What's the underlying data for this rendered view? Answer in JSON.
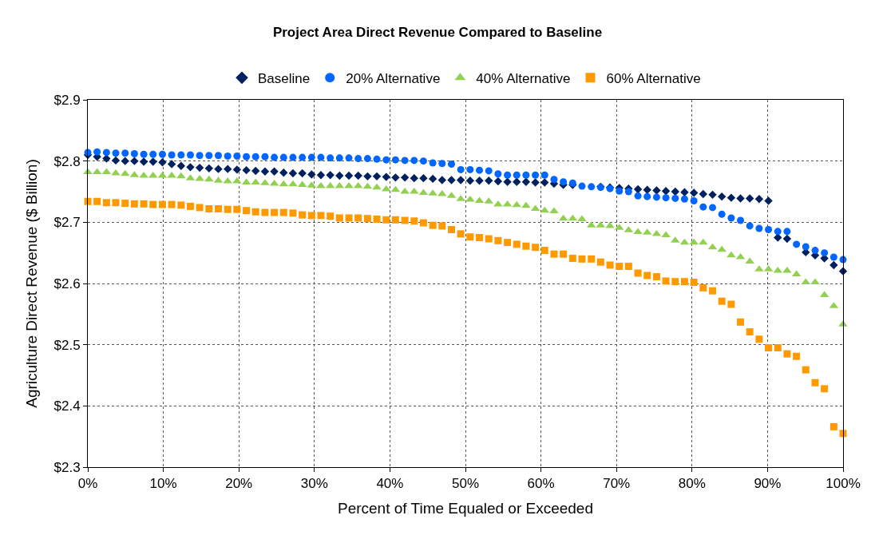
{
  "chart_data": {
    "type": "scatter",
    "title": "Project Area Direct Revenue Compared to Baseline",
    "xlabel": "Percent of Time Equaled or Exceeded",
    "ylabel": "Agriculture Direct Revenue ($ Billion)",
    "x": [
      0,
      1.23,
      2.47,
      3.7,
      4.94,
      6.17,
      7.41,
      8.64,
      9.88,
      11.11,
      12.35,
      13.58,
      14.81,
      16.05,
      17.28,
      18.52,
      19.75,
      20.99,
      22.22,
      23.46,
      24.69,
      25.93,
      27.16,
      28.4,
      29.63,
      30.86,
      32.1,
      33.33,
      34.57,
      35.8,
      37.04,
      38.27,
      39.51,
      40.74,
      41.98,
      43.21,
      44.44,
      45.68,
      46.91,
      48.15,
      49.38,
      50.62,
      51.85,
      53.09,
      54.32,
      55.56,
      56.79,
      58.02,
      59.26,
      60.49,
      61.73,
      62.96,
      64.2,
      65.43,
      66.67,
      67.9,
      69.14,
      70.37,
      71.6,
      72.84,
      74.07,
      75.31,
      76.54,
      77.78,
      79.01,
      80.25,
      81.48,
      82.72,
      83.95,
      85.19,
      86.42,
      87.65,
      88.89,
      90.12,
      91.36,
      92.59,
      93.83,
      95.06,
      96.3,
      97.53,
      98.77,
      100
    ],
    "series": [
      {
        "name": "Baseline",
        "color": "#002060",
        "marker": "diamond",
        "values": [
          2.81,
          2.807,
          2.804,
          2.801,
          2.8,
          2.8,
          2.799,
          2.799,
          2.798,
          2.795,
          2.792,
          2.79,
          2.789,
          2.788,
          2.787,
          2.787,
          2.786,
          2.785,
          2.784,
          2.783,
          2.783,
          2.781,
          2.78,
          2.78,
          2.778,
          2.777,
          2.777,
          2.776,
          2.776,
          2.776,
          2.775,
          2.775,
          2.774,
          2.773,
          2.773,
          2.772,
          2.772,
          2.771,
          2.769,
          2.769,
          2.769,
          2.768,
          2.768,
          2.768,
          2.767,
          2.766,
          2.766,
          2.766,
          2.765,
          2.765,
          2.763,
          2.761,
          2.761,
          null,
          null,
          2.758,
          2.757,
          2.756,
          2.755,
          2.754,
          2.753,
          2.752,
          2.751,
          2.75,
          2.749,
          2.748,
          2.746,
          2.745,
          2.742,
          2.74,
          2.739,
          2.739,
          2.738,
          2.735,
          2.675,
          2.673,
          null,
          2.651,
          2.646,
          2.641,
          2.63,
          2.62
        ]
      },
      {
        "name": "20% Alternative",
        "color": "#0066ff",
        "marker": "circle",
        "values": [
          2.814,
          2.815,
          2.814,
          2.813,
          2.813,
          2.812,
          2.811,
          2.811,
          2.811,
          2.81,
          2.81,
          2.81,
          2.809,
          2.809,
          2.809,
          2.808,
          2.808,
          2.807,
          2.807,
          2.807,
          2.806,
          2.806,
          2.806,
          2.806,
          2.806,
          2.806,
          2.805,
          2.805,
          2.805,
          2.804,
          2.804,
          2.803,
          2.802,
          2.802,
          2.801,
          2.801,
          2.8,
          2.797,
          2.796,
          2.795,
          2.786,
          2.786,
          2.785,
          2.784,
          2.779,
          2.777,
          2.777,
          2.777,
          2.777,
          2.777,
          2.77,
          2.766,
          2.764,
          2.759,
          2.758,
          2.757,
          2.755,
          2.751,
          2.75,
          2.743,
          2.742,
          2.741,
          2.74,
          2.739,
          2.738,
          2.735,
          2.725,
          2.724,
          2.713,
          2.707,
          2.703,
          2.694,
          2.69,
          2.688,
          2.685,
          2.685,
          2.664,
          2.66,
          2.654,
          2.65,
          2.643,
          2.639
        ]
      },
      {
        "name": "40% Alternative",
        "color": "#92d050",
        "marker": "triangle",
        "values": [
          2.782,
          2.782,
          2.782,
          2.78,
          2.779,
          2.777,
          2.776,
          2.776,
          2.776,
          2.776,
          2.775,
          2.772,
          2.771,
          2.77,
          2.768,
          2.767,
          2.767,
          2.765,
          2.765,
          2.764,
          2.763,
          2.762,
          2.762,
          2.761,
          2.76,
          2.759,
          2.759,
          2.759,
          2.759,
          2.759,
          2.758,
          2.757,
          2.754,
          2.753,
          2.75,
          2.75,
          2.748,
          2.747,
          2.746,
          2.743,
          2.738,
          2.737,
          2.735,
          2.734,
          2.729,
          2.729,
          2.728,
          2.727,
          2.722,
          2.719,
          2.718,
          2.706,
          2.706,
          2.705,
          2.695,
          2.695,
          2.694,
          2.691,
          2.687,
          2.684,
          2.683,
          2.681,
          2.679,
          2.67,
          2.667,
          2.667,
          2.667,
          2.659,
          2.655,
          2.646,
          2.643,
          2.636,
          2.623,
          2.623,
          2.621,
          2.621,
          2.615,
          2.602,
          2.602,
          2.581,
          2.563,
          2.533
        ]
      },
      {
        "name": "60% Alternative",
        "color": "#ff9900",
        "marker": "square",
        "values": [
          2.734,
          2.734,
          2.732,
          2.732,
          2.731,
          2.73,
          2.73,
          2.729,
          2.729,
          2.729,
          2.728,
          2.726,
          2.724,
          2.722,
          2.722,
          2.721,
          2.721,
          2.719,
          2.717,
          2.716,
          2.716,
          2.716,
          2.715,
          2.712,
          2.711,
          2.711,
          2.71,
          2.707,
          2.707,
          2.707,
          2.706,
          2.705,
          2.704,
          2.704,
          2.703,
          2.702,
          2.699,
          2.695,
          2.694,
          2.688,
          2.681,
          2.676,
          2.675,
          2.673,
          2.67,
          2.667,
          2.664,
          2.661,
          2.659,
          2.654,
          2.648,
          2.648,
          2.641,
          2.64,
          2.64,
          2.635,
          2.63,
          2.628,
          2.628,
          2.617,
          2.613,
          2.611,
          2.604,
          2.603,
          2.603,
          2.602,
          2.593,
          2.588,
          2.571,
          2.566,
          2.537,
          2.521,
          2.509,
          2.495,
          2.495,
          2.485,
          2.481,
          2.459,
          2.438,
          2.428,
          2.366,
          2.355
        ]
      }
    ],
    "xlim": [
      0,
      100
    ],
    "xticks": [
      {
        "value": 0,
        "label": "0%"
      },
      {
        "value": 10,
        "label": "10%"
      },
      {
        "value": 20,
        "label": "20%"
      },
      {
        "value": 30,
        "label": "30%"
      },
      {
        "value": 40,
        "label": "40%"
      },
      {
        "value": 50,
        "label": "50%"
      },
      {
        "value": 60,
        "label": "60%"
      },
      {
        "value": 70,
        "label": "70%"
      },
      {
        "value": 80,
        "label": "80%"
      },
      {
        "value": 90,
        "label": "90%"
      },
      {
        "value": 100,
        "label": "100%"
      }
    ],
    "ylim": [
      2.3,
      2.9
    ],
    "yticks": [
      {
        "value": 2.3,
        "label": "$2.3"
      },
      {
        "value": 2.4,
        "label": "$2.4"
      },
      {
        "value": 2.5,
        "label": "$2.5"
      },
      {
        "value": 2.6,
        "label": "$2.6"
      },
      {
        "value": 2.7,
        "label": "$2.7"
      },
      {
        "value": 2.8,
        "label": "$2.8"
      },
      {
        "value": 2.9,
        "label": "$2.9"
      }
    ],
    "grid": true,
    "legend": "top"
  }
}
